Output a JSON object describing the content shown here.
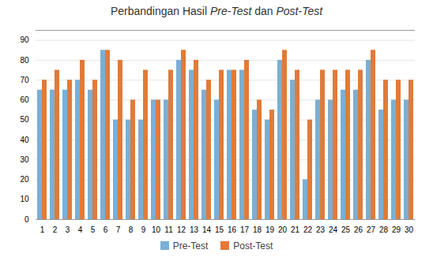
{
  "chart_data": {
    "type": "bar",
    "title": "Perbandingan Hasil Pre-Test dan Post-Test",
    "categories": [
      1,
      2,
      3,
      4,
      5,
      6,
      7,
      8,
      9,
      10,
      11,
      12,
      13,
      14,
      15,
      16,
      17,
      18,
      19,
      20,
      21,
      22,
      23,
      24,
      25,
      26,
      27,
      28,
      29,
      30
    ],
    "series": [
      {
        "name": "Pre-Test",
        "color": "#7BAFD4",
        "values": [
          65,
          65,
          65,
          70,
          65,
          85,
          50,
          50,
          50,
          60,
          60,
          80,
          75,
          65,
          60,
          75,
          75,
          55,
          50,
          80,
          70,
          20,
          60,
          60,
          65,
          65,
          80,
          55,
          60,
          60
        ]
      },
      {
        "name": "Post-Test",
        "color": "#E07B39",
        "values": [
          70,
          75,
          70,
          80,
          70,
          85,
          80,
          60,
          75,
          60,
          75,
          85,
          80,
          70,
          75,
          75,
          80,
          60,
          55,
          85,
          75,
          50,
          75,
          75,
          75,
          75,
          85,
          70,
          70,
          70
        ]
      }
    ],
    "ylim": [
      0,
      95
    ],
    "yticks": [
      0,
      10,
      20,
      30,
      40,
      50,
      60,
      70,
      80,
      90
    ],
    "grid": true,
    "legend": "bottom"
  }
}
